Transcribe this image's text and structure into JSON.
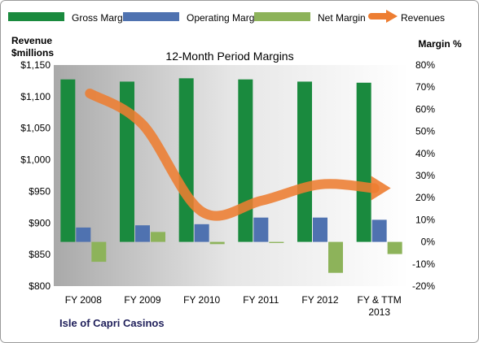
{
  "chart_data": {
    "type": "bar",
    "title": "12-Month Period Margins",
    "company": "Isle of Capri Casinos",
    "categories": [
      "FY 2008",
      "FY 2009",
      "FY 2010",
      "FY 2011",
      "FY 2012",
      "FY & TTM 2013"
    ],
    "category_lines": [
      [
        "FY 2008"
      ],
      [
        "FY 2009"
      ],
      [
        "FY 2010"
      ],
      [
        "FY 2011"
      ],
      [
        "FY 2012"
      ],
      [
        "FY & TTM",
        "2013"
      ]
    ],
    "series": [
      {
        "name": "Gross Margin",
        "type": "bar",
        "axis": "right",
        "color": "#1a8a3e",
        "values": [
          73.5,
          72.5,
          74.0,
          73.5,
          72.5,
          72.0
        ]
      },
      {
        "name": "Operating Margin",
        "type": "bar",
        "axis": "right",
        "color": "#4f72b0",
        "values": [
          6.5,
          7.5,
          8.0,
          11.0,
          11.0,
          10.0
        ]
      },
      {
        "name": "Net Margin",
        "type": "bar",
        "axis": "right",
        "color": "#8db35a",
        "values": [
          -9.0,
          4.5,
          -1.0,
          -0.5,
          -14.0,
          -5.5
        ]
      },
      {
        "name": "Revenues",
        "type": "line",
        "axis": "left",
        "color": "#ed7d31",
        "values": [
          1105,
          1056,
          918,
          935,
          961,
          955
        ]
      }
    ],
    "left_axis": {
      "label_lines": [
        "Revenue",
        "$millions"
      ],
      "ylim": [
        800,
        1150
      ],
      "ticks": [
        800,
        850,
        900,
        950,
        1000,
        1050,
        1100,
        1150
      ],
      "tick_labels": [
        "$800",
        "$850",
        "$900",
        "$950",
        "$1,000",
        "$1,050",
        "$1,100",
        "$1,150"
      ]
    },
    "right_axis": {
      "label": "Margin %",
      "ylim": [
        -20,
        80
      ],
      "ticks": [
        -20,
        -10,
        0,
        10,
        20,
        30,
        40,
        50,
        60,
        70,
        80
      ],
      "tick_labels": [
        "-20%",
        "-10%",
        "0%",
        "10%",
        "20%",
        "30%",
        "40%",
        "50%",
        "60%",
        "70%",
        "80%"
      ]
    },
    "legend_position": "top",
    "grid": false
  }
}
